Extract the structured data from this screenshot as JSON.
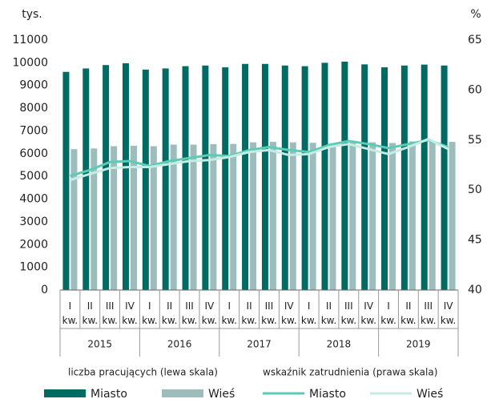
{
  "chart_data": {
    "type": "bar_line",
    "y_unit": "tys.",
    "y2_unit": "%",
    "categories": [
      "I kw.",
      "II kw.",
      "III kw.",
      "IV kw.",
      "I kw.",
      "II kw.",
      "III kw.",
      "IV kw.",
      "I kw.",
      "II kw.",
      "III kw.",
      "IV kw.",
      "I kw.",
      "II kw.",
      "III kw.",
      "IV kw.",
      "I kw.",
      "II kw.",
      "III kw.",
      "IV kw."
    ],
    "year_groups": [
      "2015",
      "2016",
      "2017",
      "2018",
      "2019"
    ],
    "legend_groups": [
      "liczba pracujących (lewa skala)",
      "wskaźnik zatrudnienia (prawa skala)"
    ],
    "ylim": [
      0,
      11000
    ],
    "yticks": [
      0,
      1000,
      2000,
      3000,
      4000,
      5000,
      6000,
      7000,
      8000,
      9000,
      10000,
      11000
    ],
    "y2lim": [
      40,
      65
    ],
    "y2ticks": [
      40,
      45,
      50,
      55,
      60,
      65
    ],
    "legend": "bottom",
    "series": [
      {
        "name": "Miasto",
        "kind": "bar",
        "color": "#006b63",
        "values": [
          9600,
          9750,
          9900,
          9980,
          9700,
          9750,
          9850,
          9880,
          9800,
          9950,
          9950,
          9880,
          9850,
          10000,
          10050,
          9930,
          9800,
          9880,
          9920,
          9880
        ]
      },
      {
        "name": "Wieś",
        "kind": "bar",
        "color": "#9dbdbd",
        "values": [
          6200,
          6230,
          6330,
          6350,
          6330,
          6400,
          6400,
          6420,
          6430,
          6500,
          6520,
          6500,
          6480,
          6460,
          6500,
          6500,
          6470,
          6540,
          6560,
          6520
        ]
      },
      {
        "name": "Miasto",
        "kind": "line",
        "axis": "y2",
        "color": "#5ccbb6",
        "values": [
          51.4,
          52.0,
          52.8,
          52.9,
          52.4,
          52.9,
          53.2,
          53.5,
          53.4,
          54.0,
          54.3,
          54.0,
          53.8,
          54.5,
          54.9,
          54.6,
          54.2,
          54.6,
          55.0,
          54.3
        ]
      },
      {
        "name": "Wieś",
        "kind": "line",
        "axis": "y2",
        "color": "#c4ece2",
        "values": [
          51.0,
          51.6,
          52.2,
          52.3,
          52.3,
          52.6,
          52.9,
          53.0,
          53.3,
          53.8,
          54.0,
          53.5,
          53.6,
          54.3,
          54.6,
          54.1,
          53.6,
          54.3,
          55.1,
          54.1
        ]
      }
    ]
  }
}
